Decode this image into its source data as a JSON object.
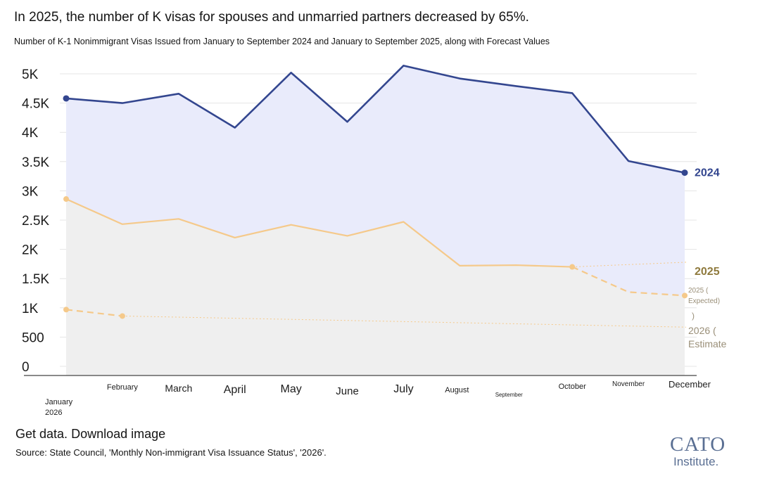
{
  "header": {
    "headline": "In 2025, the number of K visas for spouses and unmarried partners decreased by 65%.",
    "subtitle": "Number of K-1 Nonimmigrant Visas Issued from January to September 2024 and January to September 2025, along with Forecast Values"
  },
  "footer": {
    "get_data": "Get data",
    "separator": ".",
    "download": "Download image",
    "source": "Source: State Council, 'Monthly Non-immigrant Visa Issuance Status', '2026'.",
    "logo_word": "CATO",
    "logo_sub": "Institute."
  },
  "colors": {
    "series_2024": "#33468f",
    "series_2025": "#f5c98a",
    "area_2024": "#e9ebfb",
    "area_2025": "#efefef",
    "label_2025": "#8f7a3d",
    "muted_label": "#9a8f78",
    "gridline": "#e4e4e4"
  },
  "chart_data": {
    "type": "line",
    "title": "Number of K-1 Nonimmigrant Visas Issued from January to September 2024 and January to September 2025, along with Forecast Values",
    "xlabel": "",
    "ylabel": "",
    "ylim": [
      0,
      5000
    ],
    "grid": true,
    "categories": [
      "January 2026",
      "February",
      "March",
      "April",
      "May",
      "June",
      "July",
      "August",
      "September",
      "October",
      "November",
      "December"
    ],
    "y_tick_values": [
      0,
      500,
      1000,
      1500,
      2000,
      2500,
      3000,
      3500,
      4000,
      4500,
      5000
    ],
    "y_tick_labels": [
      "0",
      "500",
      "1K",
      "1.5K",
      "2K",
      "2.5K",
      "3K",
      "3.5K",
      "4K",
      "4.5K",
      "5K"
    ],
    "series": [
      {
        "name": "2024",
        "label": "2024",
        "style": "solid",
        "values": [
          4580,
          4500,
          4660,
          4080,
          5020,
          4180,
          5140,
          4920,
          4790,
          4670,
          3510,
          3310
        ]
      },
      {
        "name": "2025",
        "label": "2025",
        "style": "solid",
        "values": [
          2860,
          2430,
          2520,
          2200,
          2420,
          2230,
          2470,
          1720,
          1730,
          1700,
          null,
          null
        ]
      },
      {
        "name": "2025 (Expected)",
        "label_lines": [
          "2025 (",
          "Expected)",
          ")"
        ],
        "style": "dashed",
        "values": [
          null,
          null,
          null,
          null,
          null,
          null,
          null,
          null,
          null,
          1700,
          1270,
          1210
        ]
      },
      {
        "name": "2026 (Estimate",
        "label_lines": [
          "2026 (",
          "Estimate"
        ],
        "style": "dashed",
        "values": [
          970,
          860,
          null,
          null,
          null,
          null,
          null,
          null,
          null,
          null,
          null,
          null
        ]
      }
    ],
    "trend_lines": [
      {
        "name": "2025 trend",
        "from": {
          "x": "October",
          "y": 1700
        },
        "to_y": 1780
      },
      {
        "name": "2026 trend",
        "from": {
          "x": "February",
          "y": 860
        },
        "to_y": 670
      }
    ]
  }
}
